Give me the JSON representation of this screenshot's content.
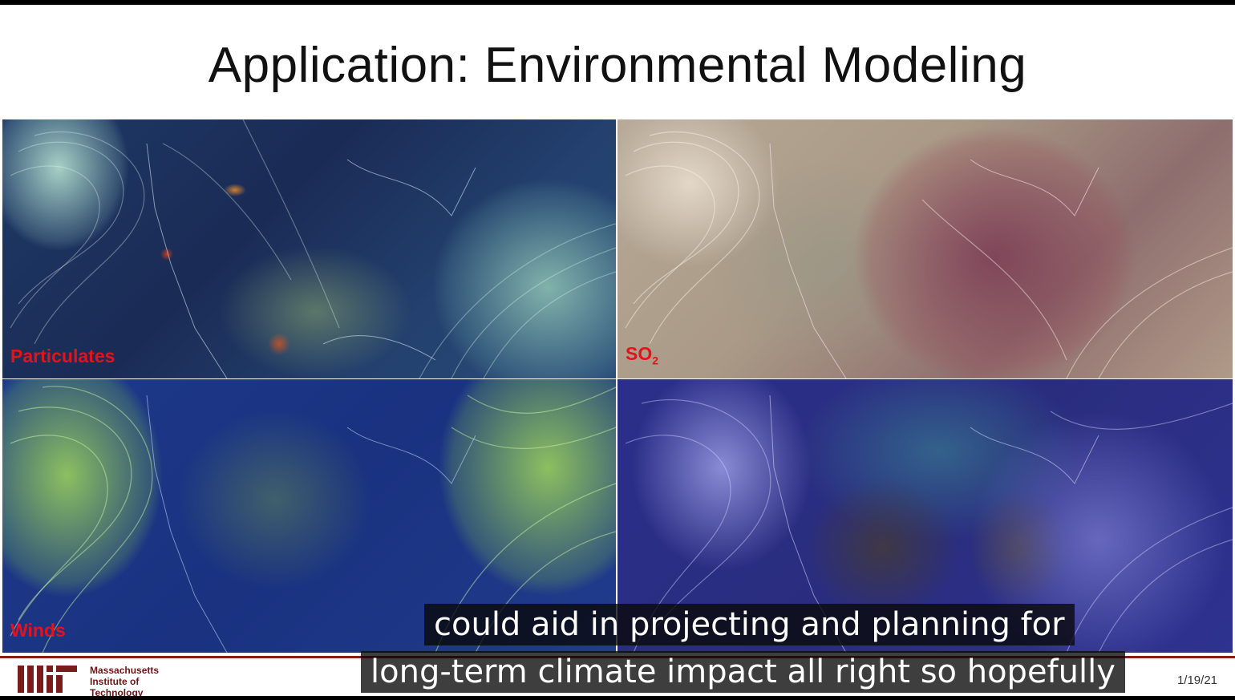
{
  "slide": {
    "title": "Application: Environmental Modeling",
    "panels": [
      {
        "label": "Particulates"
      },
      {
        "label_main": "SO",
        "label_sub": "2"
      },
      {
        "label": "Winds"
      },
      {
        "label": ""
      }
    ],
    "footer": {
      "institution_lines": [
        "Massachusetts",
        "Institute of",
        "Technology"
      ],
      "date": "1/19/21"
    }
  },
  "captions": {
    "line1": "could aid in projecting and planning for",
    "line2": "long-term climate impact all right so hopefully"
  }
}
